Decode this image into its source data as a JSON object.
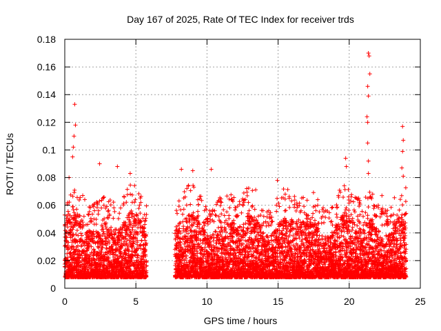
{
  "chart_data": {
    "type": "scatter",
    "title": "Day 167 of 2025, Rate Of TEC Index for receiver trds",
    "xlabel": "GPS time / hours",
    "ylabel": "ROTI / TECUs",
    "xlim": [
      0,
      25
    ],
    "ylim": [
      0,
      0.18
    ],
    "xticks": [
      0,
      5,
      10,
      15,
      20,
      25
    ],
    "xtick_labels": [
      "0",
      "5",
      "10",
      "15",
      "20",
      "25"
    ],
    "yticks": [
      0,
      0.02,
      0.04,
      0.06,
      0.08,
      0.1,
      0.12,
      0.14,
      0.16,
      0.18
    ],
    "ytick_labels": [
      "0",
      "0.02",
      "0.04",
      "0.06",
      "0.08",
      "0.1",
      "0.12",
      "0.14",
      "0.16",
      "0.18"
    ],
    "grid": true,
    "marker": "+",
    "colors": {
      "points": "#ff0000",
      "grid": "#a0a0a0",
      "axes": "#000000"
    },
    "data_gap": [
      5.75,
      7.75
    ],
    "series": [
      {
        "name": "ROTI",
        "segments": [
          {
            "x_range": [
              0.0,
              5.75
            ],
            "typical_range": [
              0.008,
              0.045
            ]
          },
          {
            "x_range": [
              7.75,
              24.0
            ],
            "typical_range": [
              0.008,
              0.045
            ]
          }
        ],
        "peaks": [
          {
            "x": 0.7,
            "y": 0.133
          },
          {
            "x": 0.75,
            "y": 0.118
          },
          {
            "x": 0.65,
            "y": 0.11
          },
          {
            "x": 0.6,
            "y": 0.102
          },
          {
            "x": 0.55,
            "y": 0.095
          },
          {
            "x": 0.3,
            "y": 0.08
          },
          {
            "x": 2.45,
            "y": 0.09
          },
          {
            "x": 3.7,
            "y": 0.088
          },
          {
            "x": 4.6,
            "y": 0.083
          },
          {
            "x": 8.2,
            "y": 0.086
          },
          {
            "x": 9.0,
            "y": 0.085
          },
          {
            "x": 10.3,
            "y": 0.086
          },
          {
            "x": 12.6,
            "y": 0.062
          },
          {
            "x": 14.95,
            "y": 0.078
          },
          {
            "x": 15.5,
            "y": 0.068
          },
          {
            "x": 19.75,
            "y": 0.094
          },
          {
            "x": 19.8,
            "y": 0.088
          },
          {
            "x": 21.35,
            "y": 0.17
          },
          {
            "x": 21.4,
            "y": 0.168
          },
          {
            "x": 21.45,
            "y": 0.155
          },
          {
            "x": 21.3,
            "y": 0.146
          },
          {
            "x": 21.35,
            "y": 0.139
          },
          {
            "x": 21.25,
            "y": 0.124
          },
          {
            "x": 21.3,
            "y": 0.12
          },
          {
            "x": 21.3,
            "y": 0.105
          },
          {
            "x": 21.35,
            "y": 0.092
          },
          {
            "x": 21.35,
            "y": 0.083
          },
          {
            "x": 22.3,
            "y": 0.067
          },
          {
            "x": 23.75,
            "y": 0.117
          },
          {
            "x": 23.8,
            "y": 0.107
          },
          {
            "x": 23.75,
            "y": 0.099
          },
          {
            "x": 23.7,
            "y": 0.087
          },
          {
            "x": 23.8,
            "y": 0.081
          }
        ]
      }
    ]
  }
}
